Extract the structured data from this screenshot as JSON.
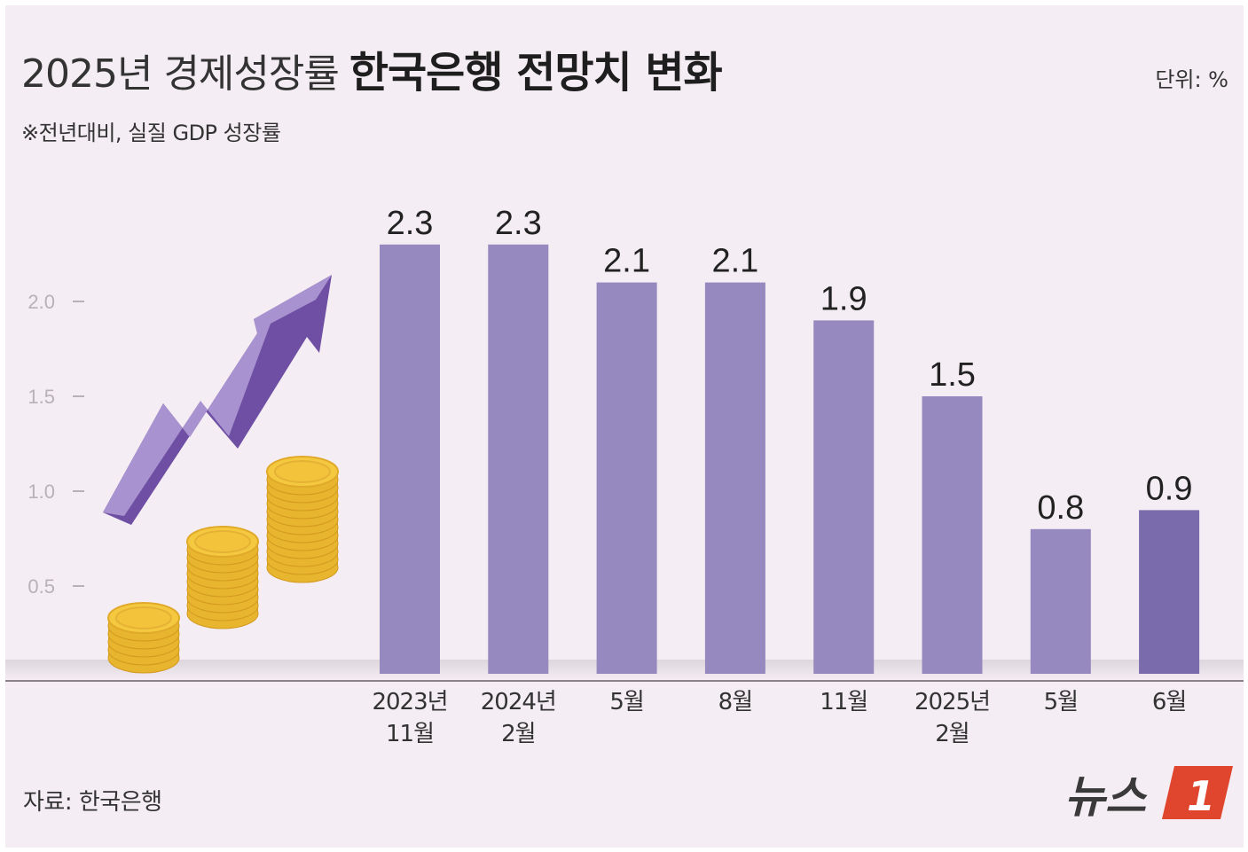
{
  "header": {
    "title_main": "2025년 경제성장률",
    "title_bold": "한국은행 전망치 변화",
    "subtitle": "※전년대비, 실질 GDP 성장률",
    "unit": "단위: %"
  },
  "footer": {
    "source": "자료: 한국은행",
    "logo_text": "뉴스",
    "logo_mark": "1"
  },
  "colors": {
    "bar": "#9589bf",
    "bar_highlight": "#7a6bad",
    "background": "#f4edf3",
    "axis_text": "#b8b1b8",
    "coin": "#f2c33b",
    "arrow": "#9d84c4",
    "logo_red": "#e0452d"
  },
  "chart_data": {
    "type": "bar",
    "categories": [
      [
        "2023년",
        "11월"
      ],
      [
        "2024년",
        "2월"
      ],
      [
        "5월"
      ],
      [
        "8월"
      ],
      [
        "11월"
      ],
      [
        "2025년",
        "2월"
      ],
      [
        "5월"
      ],
      [
        "6월"
      ]
    ],
    "values": [
      2.3,
      2.3,
      2.1,
      2.1,
      1.9,
      1.5,
      0.8,
      0.9
    ],
    "value_labels": [
      "2.3",
      "2.3",
      "2.1",
      "2.1",
      "1.9",
      "1.5",
      "0.8",
      "0.9"
    ],
    "highlight_index": 7,
    "yticks": [
      "2.0",
      "1.5",
      "1.0",
      "0.5"
    ],
    "ytick_values": [
      2.0,
      1.5,
      1.0,
      0.5
    ],
    "ylim": [
      0,
      2.3
    ],
    "grid": false,
    "legend": "none",
    "decoration": [
      "rising-arrow-icon",
      "coin-stack-icon"
    ]
  }
}
